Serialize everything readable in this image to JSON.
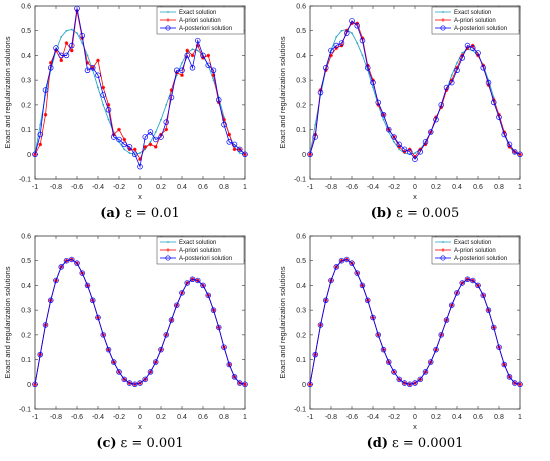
{
  "figure": {
    "colors": {
      "exact": "#2ba6c6",
      "a_priori": "#ff0000",
      "a_posteriori": "#0000ff"
    },
    "panels": [
      {
        "label": "(a)",
        "caption": "ε = 0.01"
      },
      {
        "label": "(b)",
        "caption": "ε = 0.005"
      },
      {
        "label": "(c)",
        "caption": "ε = 0.001"
      },
      {
        "label": "(d)",
        "caption": "ε = 0.0001"
      }
    ]
  },
  "chart_data": [
    {
      "type": "line",
      "xlabel": "x",
      "ylabel": "Exact and regularization solutions",
      "xlim": [
        -1,
        1
      ],
      "ylim": [
        -0.1,
        0.6
      ],
      "xticks": [
        "-1",
        "-0.8",
        "-0.6",
        "-0.4",
        "-0.2",
        "0",
        "0.2",
        "0.4",
        "0.6",
        "0.8",
        "1"
      ],
      "yticks": [
        "-0.1",
        "0",
        "0.1",
        "0.2",
        "0.3",
        "0.4",
        "0.5",
        "0.6"
      ],
      "legend_position": "top-right",
      "x": [
        -1,
        -0.95,
        -0.9,
        -0.85,
        -0.8,
        -0.75,
        -0.7,
        -0.65,
        -0.6,
        -0.55,
        -0.5,
        -0.45,
        -0.4,
        -0.35,
        -0.3,
        -0.25,
        -0.2,
        -0.15,
        -0.1,
        -0.05,
        0,
        0.05,
        0.1,
        0.15,
        0.2,
        0.25,
        0.3,
        0.35,
        0.4,
        0.45,
        0.5,
        0.55,
        0.6,
        0.65,
        0.7,
        0.75,
        0.8,
        0.85,
        0.9,
        0.95,
        1
      ],
      "series": [
        {
          "name": "Exact solution",
          "values": [
            0,
            0.12,
            0.24,
            0.34,
            0.42,
            0.475,
            0.5,
            0.505,
            0.49,
            0.45,
            0.4,
            0.34,
            0.27,
            0.2,
            0.14,
            0.09,
            0.05,
            0.02,
            0.005,
            0,
            0.005,
            0.02,
            0.05,
            0.09,
            0.14,
            0.2,
            0.26,
            0.32,
            0.37,
            0.41,
            0.425,
            0.42,
            0.4,
            0.36,
            0.3,
            0.23,
            0.15,
            0.08,
            0.03,
            0.005,
            0
          ]
        },
        {
          "name": "A-priori solution",
          "values": [
            0,
            0.04,
            0.16,
            0.37,
            0.42,
            0.38,
            0.45,
            0.42,
            0.58,
            0.47,
            0.37,
            0.35,
            0.38,
            0.27,
            0.2,
            0.08,
            0.1,
            0.06,
            0.02,
            0.02,
            -0.02,
            0.03,
            0.04,
            0.03,
            0.08,
            0.1,
            0.26,
            0.33,
            0.32,
            0.42,
            0.4,
            0.44,
            0.39,
            0.4,
            0.32,
            0.21,
            0.14,
            0.08,
            0.02,
            0.02,
            0
          ]
        },
        {
          "name": "A-posteriori solution",
          "values": [
            0,
            0.08,
            0.26,
            0.35,
            0.43,
            0.4,
            0.4,
            0.44,
            0.59,
            0.48,
            0.34,
            0.35,
            0.32,
            0.24,
            0.18,
            0.07,
            0.06,
            0.04,
            0.03,
            0,
            -0.05,
            0.07,
            0.09,
            0.06,
            0.07,
            0.13,
            0.23,
            0.34,
            0.34,
            0.4,
            0.35,
            0.46,
            0.4,
            0.36,
            0.34,
            0.22,
            0.12,
            0.05,
            0.04,
            0.02,
            0
          ]
        }
      ]
    },
    {
      "type": "line",
      "xlabel": "x",
      "ylabel": "Exact and regularization solutions",
      "xlim": [
        -1,
        1
      ],
      "ylim": [
        -0.1,
        0.6
      ],
      "xticks": [
        "-1",
        "-0.8",
        "-0.6",
        "-0.4",
        "-0.2",
        "0",
        "0.2",
        "0.4",
        "0.6",
        "0.8",
        "1"
      ],
      "yticks": [
        "-0.1",
        "0",
        "0.1",
        "0.2",
        "0.3",
        "0.4",
        "0.5",
        "0.6"
      ],
      "legend_position": "top-right",
      "x": [
        -1,
        -0.95,
        -0.9,
        -0.85,
        -0.8,
        -0.75,
        -0.7,
        -0.65,
        -0.6,
        -0.55,
        -0.5,
        -0.45,
        -0.4,
        -0.35,
        -0.3,
        -0.25,
        -0.2,
        -0.15,
        -0.1,
        -0.05,
        0,
        0.05,
        0.1,
        0.15,
        0.2,
        0.25,
        0.3,
        0.35,
        0.4,
        0.45,
        0.5,
        0.55,
        0.6,
        0.65,
        0.7,
        0.75,
        0.8,
        0.85,
        0.9,
        0.95,
        1
      ],
      "series": [
        {
          "name": "Exact solution",
          "values": [
            0,
            0.12,
            0.24,
            0.34,
            0.42,
            0.475,
            0.5,
            0.505,
            0.49,
            0.45,
            0.4,
            0.34,
            0.27,
            0.2,
            0.14,
            0.09,
            0.05,
            0.02,
            0.005,
            0,
            0.005,
            0.02,
            0.05,
            0.09,
            0.14,
            0.2,
            0.26,
            0.32,
            0.37,
            0.41,
            0.425,
            0.42,
            0.4,
            0.36,
            0.3,
            0.23,
            0.15,
            0.08,
            0.03,
            0.005,
            0
          ]
        },
        {
          "name": "A-priori solution",
          "values": [
            0,
            0.08,
            0.26,
            0.34,
            0.4,
            0.43,
            0.44,
            0.5,
            0.53,
            0.53,
            0.47,
            0.36,
            0.3,
            0.2,
            0.16,
            0.1,
            0.07,
            0.03,
            0.01,
            0.02,
            -0.01,
            0.02,
            0.04,
            0.09,
            0.15,
            0.19,
            0.26,
            0.3,
            0.35,
            0.4,
            0.43,
            0.44,
            0.4,
            0.36,
            0.28,
            0.22,
            0.16,
            0.09,
            0.03,
            0.01,
            0
          ]
        },
        {
          "name": "A-posteriori solution",
          "values": [
            0,
            0.07,
            0.25,
            0.35,
            0.42,
            0.44,
            0.45,
            0.49,
            0.54,
            0.52,
            0.46,
            0.35,
            0.29,
            0.21,
            0.16,
            0.1,
            0.07,
            0.04,
            0.02,
            0.01,
            -0.02,
            0.01,
            0.05,
            0.09,
            0.14,
            0.2,
            0.27,
            0.29,
            0.34,
            0.39,
            0.44,
            0.43,
            0.41,
            0.35,
            0.29,
            0.21,
            0.15,
            0.08,
            0.04,
            0.01,
            0
          ]
        }
      ]
    },
    {
      "type": "line",
      "xlabel": "x",
      "ylabel": "Exact and regularization solutions",
      "xlim": [
        -1,
        1
      ],
      "ylim": [
        -0.1,
        0.6
      ],
      "xticks": [
        "-1",
        "-0.8",
        "-0.6",
        "-0.4",
        "-0.2",
        "0",
        "0.2",
        "0.4",
        "0.6",
        "0.8",
        "1"
      ],
      "yticks": [
        "-0.1",
        "0",
        "0.1",
        "0.2",
        "0.3",
        "0.4",
        "0.5",
        "0.6"
      ],
      "legend_position": "top-right",
      "x": [
        -1,
        -0.95,
        -0.9,
        -0.85,
        -0.8,
        -0.75,
        -0.7,
        -0.65,
        -0.6,
        -0.55,
        -0.5,
        -0.45,
        -0.4,
        -0.35,
        -0.3,
        -0.25,
        -0.2,
        -0.15,
        -0.1,
        -0.05,
        0,
        0.05,
        0.1,
        0.15,
        0.2,
        0.25,
        0.3,
        0.35,
        0.4,
        0.45,
        0.5,
        0.55,
        0.6,
        0.65,
        0.7,
        0.75,
        0.8,
        0.85,
        0.9,
        0.95,
        1
      ],
      "series": [
        {
          "name": "Exact solution",
          "values": [
            0,
            0.12,
            0.24,
            0.34,
            0.42,
            0.475,
            0.5,
            0.505,
            0.49,
            0.45,
            0.4,
            0.34,
            0.27,
            0.2,
            0.14,
            0.09,
            0.05,
            0.02,
            0.005,
            0,
            0.005,
            0.02,
            0.05,
            0.09,
            0.14,
            0.2,
            0.26,
            0.32,
            0.37,
            0.41,
            0.425,
            0.42,
            0.4,
            0.36,
            0.3,
            0.23,
            0.15,
            0.08,
            0.03,
            0.005,
            0
          ]
        },
        {
          "name": "A-priori solution",
          "values": [
            0,
            0.12,
            0.24,
            0.34,
            0.42,
            0.475,
            0.5,
            0.505,
            0.49,
            0.45,
            0.4,
            0.34,
            0.27,
            0.2,
            0.14,
            0.09,
            0.05,
            0.02,
            0.005,
            0,
            0.005,
            0.02,
            0.05,
            0.09,
            0.14,
            0.2,
            0.26,
            0.32,
            0.37,
            0.41,
            0.425,
            0.42,
            0.4,
            0.36,
            0.3,
            0.23,
            0.15,
            0.08,
            0.03,
            0.005,
            0
          ]
        },
        {
          "name": "A-posteriori solution",
          "values": [
            0,
            0.12,
            0.24,
            0.34,
            0.42,
            0.475,
            0.5,
            0.505,
            0.49,
            0.45,
            0.4,
            0.34,
            0.27,
            0.2,
            0.14,
            0.09,
            0.05,
            0.02,
            0.005,
            0,
            0.005,
            0.02,
            0.05,
            0.09,
            0.14,
            0.2,
            0.26,
            0.32,
            0.37,
            0.41,
            0.425,
            0.42,
            0.4,
            0.36,
            0.3,
            0.23,
            0.15,
            0.08,
            0.03,
            0.005,
            0
          ]
        }
      ]
    },
    {
      "type": "line",
      "xlabel": "x",
      "ylabel": "Exact and regularization solutions",
      "xlim": [
        -1,
        1
      ],
      "ylim": [
        -0.1,
        0.6
      ],
      "xticks": [
        "-1",
        "-0.8",
        "-0.6",
        "-0.4",
        "-0.2",
        "0",
        "0.2",
        "0.4",
        "0.6",
        "0.8",
        "1"
      ],
      "yticks": [
        "-0.1",
        "0",
        "0.1",
        "0.2",
        "0.3",
        "0.4",
        "0.5",
        "0.6"
      ],
      "legend_position": "top-right",
      "x": [
        -1,
        -0.95,
        -0.9,
        -0.85,
        -0.8,
        -0.75,
        -0.7,
        -0.65,
        -0.6,
        -0.55,
        -0.5,
        -0.45,
        -0.4,
        -0.35,
        -0.3,
        -0.25,
        -0.2,
        -0.15,
        -0.1,
        -0.05,
        0,
        0.05,
        0.1,
        0.15,
        0.2,
        0.25,
        0.3,
        0.35,
        0.4,
        0.45,
        0.5,
        0.55,
        0.6,
        0.65,
        0.7,
        0.75,
        0.8,
        0.85,
        0.9,
        0.95,
        1
      ],
      "series": [
        {
          "name": "Exact solution",
          "values": [
            0,
            0.12,
            0.24,
            0.34,
            0.42,
            0.475,
            0.5,
            0.505,
            0.49,
            0.45,
            0.4,
            0.34,
            0.27,
            0.2,
            0.14,
            0.09,
            0.05,
            0.02,
            0.005,
            0,
            0.005,
            0.02,
            0.05,
            0.09,
            0.14,
            0.2,
            0.26,
            0.32,
            0.37,
            0.41,
            0.425,
            0.42,
            0.4,
            0.36,
            0.3,
            0.23,
            0.15,
            0.08,
            0.03,
            0.005,
            0
          ]
        },
        {
          "name": "A-priori solution",
          "values": [
            0,
            0.12,
            0.24,
            0.34,
            0.42,
            0.475,
            0.5,
            0.505,
            0.49,
            0.45,
            0.4,
            0.34,
            0.27,
            0.2,
            0.14,
            0.09,
            0.05,
            0.02,
            0.005,
            0,
            0.005,
            0.02,
            0.05,
            0.09,
            0.14,
            0.2,
            0.26,
            0.32,
            0.37,
            0.41,
            0.425,
            0.42,
            0.4,
            0.36,
            0.3,
            0.23,
            0.15,
            0.08,
            0.03,
            0.005,
            0
          ]
        },
        {
          "name": "A-posteriori solution",
          "values": [
            0,
            0.12,
            0.24,
            0.34,
            0.42,
            0.475,
            0.5,
            0.505,
            0.49,
            0.45,
            0.4,
            0.34,
            0.27,
            0.2,
            0.14,
            0.09,
            0.05,
            0.02,
            0.005,
            0,
            0.005,
            0.02,
            0.05,
            0.09,
            0.14,
            0.2,
            0.26,
            0.32,
            0.37,
            0.41,
            0.425,
            0.42,
            0.4,
            0.36,
            0.3,
            0.23,
            0.15,
            0.08,
            0.03,
            0.005,
            0
          ]
        }
      ]
    }
  ]
}
